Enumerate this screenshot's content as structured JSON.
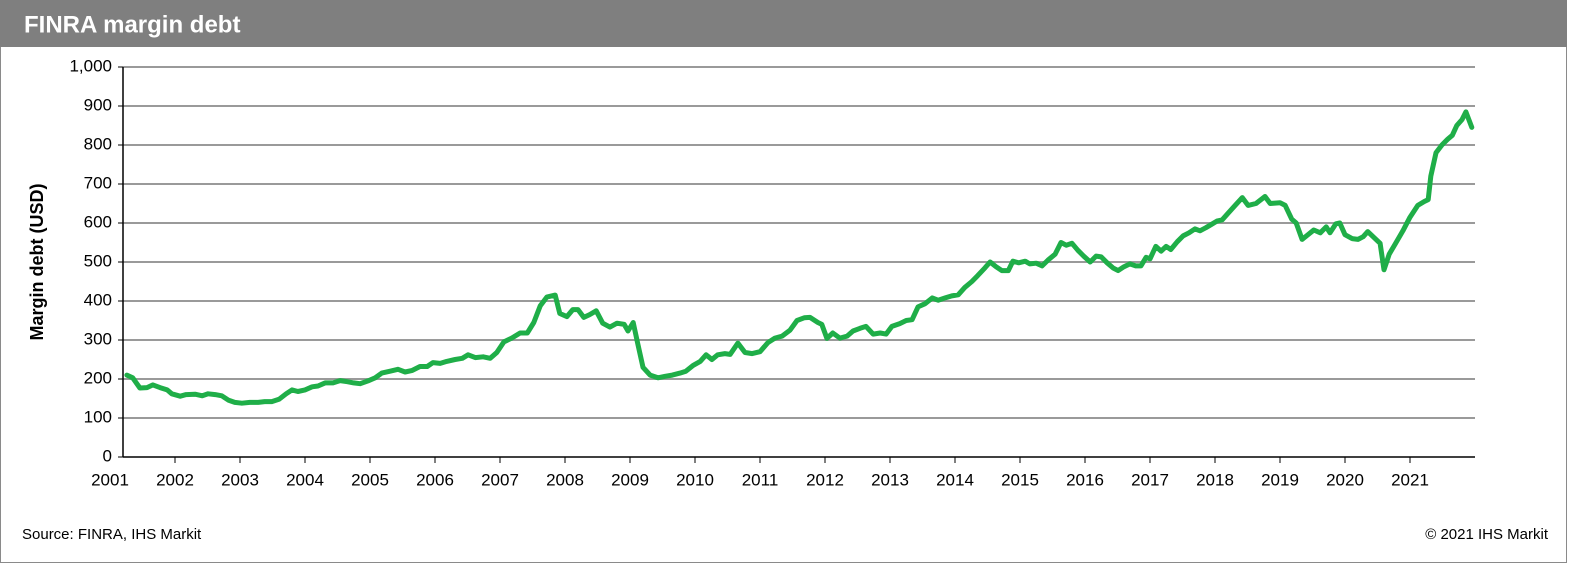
{
  "chart_data": {
    "type": "line",
    "title": "FINRA margin debt",
    "y_label": "Margin debt (USD)",
    "source": "Source: FINRA, IHS Markit",
    "copyright": "© 2021 IHS Markit",
    "xlim": [
      2001.2,
      2022
    ],
    "xticks": [
      2001,
      2002,
      2003,
      2004,
      2005,
      2006,
      2007,
      2008,
      2009,
      2010,
      2011,
      2012,
      2013,
      2014,
      2015,
      2016,
      2017,
      2018,
      2019,
      2020,
      2021
    ],
    "ylim": [
      0,
      1000
    ],
    "yticks": [
      0,
      100,
      200,
      300,
      400,
      500,
      600,
      700,
      800,
      900,
      {
        "value": 1000,
        "label": "1,000"
      }
    ],
    "grid": true,
    "series": [
      {
        "name": "FINRA margin debt",
        "color": "#1fae48",
        "x": [
          2001.26,
          2001.35,
          2001.46,
          2001.57,
          2001.66,
          2001.77,
          2001.88,
          2001.95,
          2002.08,
          2002.17,
          2002.31,
          2002.42,
          2002.51,
          2002.62,
          2002.72,
          2002.82,
          2002.92,
          2003.03,
          2003.15,
          2003.28,
          2003.38,
          2003.49,
          2003.6,
          2003.71,
          2003.8,
          2003.89,
          2004.0,
          2004.11,
          2004.2,
          2004.31,
          2004.43,
          2004.54,
          2004.65,
          2004.75,
          2004.85,
          2004.97,
          2005.08,
          2005.18,
          2005.31,
          2005.43,
          2005.54,
          2005.65,
          2005.77,
          2005.88,
          2005.97,
          2006.08,
          2006.18,
          2006.31,
          2006.42,
          2006.51,
          2006.62,
          2006.74,
          2006.85,
          2006.95,
          2007.06,
          2007.18,
          2007.31,
          2007.42,
          2007.52,
          2007.62,
          2007.72,
          2007.85,
          2007.92,
          2008.03,
          2008.12,
          2008.2,
          2008.29,
          2008.38,
          2008.48,
          2008.58,
          2008.69,
          2008.8,
          2008.91,
          2008.97,
          2009.05,
          2009.12,
          2009.2,
          2009.31,
          2009.43,
          2009.54,
          2009.65,
          2009.77,
          2009.86,
          2009.97,
          2010.08,
          2010.17,
          2010.26,
          2010.35,
          2010.46,
          2010.54,
          2010.66,
          2010.77,
          2010.88,
          2011.0,
          2011.12,
          2011.23,
          2011.34,
          2011.46,
          2011.57,
          2011.68,
          2011.77,
          2011.89,
          2011.95,
          2012.03,
          2012.12,
          2012.23,
          2012.34,
          2012.43,
          2012.54,
          2012.63,
          2012.74,
          2012.85,
          2012.94,
          2013.03,
          2013.15,
          2013.25,
          2013.34,
          2013.43,
          2013.54,
          2013.65,
          2013.74,
          2013.85,
          2013.95,
          2014.05,
          2014.15,
          2014.26,
          2014.35,
          2014.46,
          2014.54,
          2014.63,
          2014.72,
          2014.82,
          2014.89,
          2014.98,
          2015.08,
          2015.15,
          2015.25,
          2015.34,
          2015.43,
          2015.54,
          2015.63,
          2015.71,
          2015.8,
          2015.89,
          2015.98,
          2016.08,
          2016.17,
          2016.25,
          2016.34,
          2016.43,
          2016.51,
          2016.6,
          2016.69,
          2016.78,
          2016.86,
          2016.94,
          2017.0,
          2017.09,
          2017.17,
          2017.25,
          2017.32,
          2017.42,
          2017.51,
          2017.6,
          2017.69,
          2017.77,
          2017.86,
          2017.95,
          2018.03,
          2018.11,
          2018.2,
          2018.31,
          2018.42,
          2018.51,
          2018.63,
          2018.77,
          2018.85,
          2019.0,
          2019.08,
          2019.18,
          2019.25,
          2019.34,
          2019.43,
          2019.52,
          2019.62,
          2019.71,
          2019.77,
          2019.86,
          2019.92,
          2020.0,
          2020.11,
          2020.2,
          2020.28,
          2020.35,
          2020.45,
          2020.54,
          2020.6,
          2020.68,
          2020.77,
          2020.89,
          2021.0,
          2021.12,
          2021.22,
          2021.28,
          2021.32,
          2021.4,
          2021.49,
          2021.58,
          2021.65,
          2021.72,
          2021.8,
          2021.86,
          2021.95
        ],
        "values": [
          210,
          203,
          177,
          178,
          185,
          178,
          172,
          162,
          156,
          160,
          161,
          157,
          162,
          160,
          157,
          146,
          140,
          138,
          140,
          140,
          142,
          142,
          148,
          162,
          172,
          168,
          172,
          180,
          182,
          190,
          190,
          196,
          193,
          190,
          188,
          195,
          203,
          215,
          220,
          225,
          218,
          222,
          232,
          232,
          242,
          240,
          245,
          250,
          253,
          262,
          255,
          257,
          253,
          268,
          295,
          305,
          318,
          318,
          345,
          388,
          410,
          415,
          368,
          360,
          378,
          378,
          358,
          365,
          375,
          343,
          333,
          343,
          340,
          323,
          345,
          290,
          230,
          210,
          203,
          207,
          210,
          215,
          220,
          235,
          245,
          262,
          250,
          262,
          265,
          263,
          292,
          268,
          265,
          270,
          293,
          305,
          310,
          325,
          350,
          357,
          358,
          345,
          340,
          304,
          318,
          305,
          310,
          323,
          330,
          335,
          315,
          318,
          315,
          335,
          342,
          350,
          352,
          385,
          393,
          408,
          402,
          408,
          413,
          416,
          435,
          450,
          465,
          485,
          500,
          488,
          478,
          478,
          502,
          498,
          502,
          495,
          497,
          490,
          505,
          520,
          550,
          543,
          548,
          530,
          515,
          500,
          515,
          513,
          498,
          485,
          478,
          488,
          495,
          490,
          490,
          512,
          508,
          540,
          528,
          540,
          532,
          552,
          567,
          575,
          585,
          580,
          588,
          597,
          605,
          608,
          625,
          645,
          665,
          645,
          650,
          668,
          650,
          652,
          645,
          610,
          600,
          558,
          570,
          582,
          575,
          590,
          575,
          598,
          600,
          570,
          560,
          558,
          565,
          578,
          562,
          548,
          480,
          520,
          545,
          580,
          615,
          645,
          655,
          660,
          720,
          780,
          800,
          815,
          825,
          850,
          865,
          885,
          845
        ]
      }
    ]
  }
}
